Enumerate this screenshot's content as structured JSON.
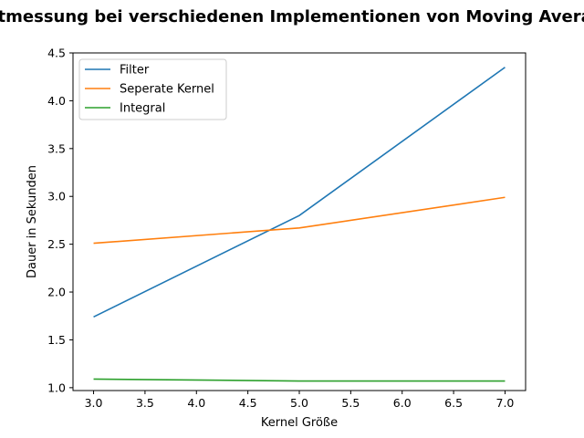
{
  "chart_data": {
    "type": "line",
    "title": "Zeitmessung bei verschiedenen Implementionen von Moving Average",
    "xlabel": "Kernel Größe",
    "ylabel": "Dauer in Sekunden",
    "xlim": [
      2.8,
      7.2
    ],
    "ylim": [
      0.97,
      4.5
    ],
    "xticks": [
      3.0,
      3.5,
      4.0,
      4.5,
      5.0,
      5.5,
      6.0,
      6.5,
      7.0
    ],
    "yticks": [
      1.0,
      1.5,
      2.0,
      2.5,
      3.0,
      3.5,
      4.0,
      4.5
    ],
    "xtick_labels": [
      "3.0",
      "3.5",
      "4.0",
      "4.5",
      "5.0",
      "5.5",
      "6.0",
      "6.5",
      "7.0"
    ],
    "ytick_labels": [
      "1.0",
      "1.5",
      "2.0",
      "2.5",
      "3.0",
      "3.5",
      "4.0",
      "4.5"
    ],
    "grid": false,
    "legend_position": "top-left",
    "x": [
      3,
      5,
      7
    ],
    "series": [
      {
        "name": "Filter",
        "color": "#1f77b4",
        "values": [
          1.74,
          2.8,
          4.35
        ]
      },
      {
        "name": "Seperate Kernel",
        "color": "#ff7f0e",
        "values": [
          2.51,
          2.67,
          2.99
        ]
      },
      {
        "name": "Integral",
        "color": "#2ca02c",
        "values": [
          1.09,
          1.07,
          1.07
        ]
      }
    ]
  }
}
